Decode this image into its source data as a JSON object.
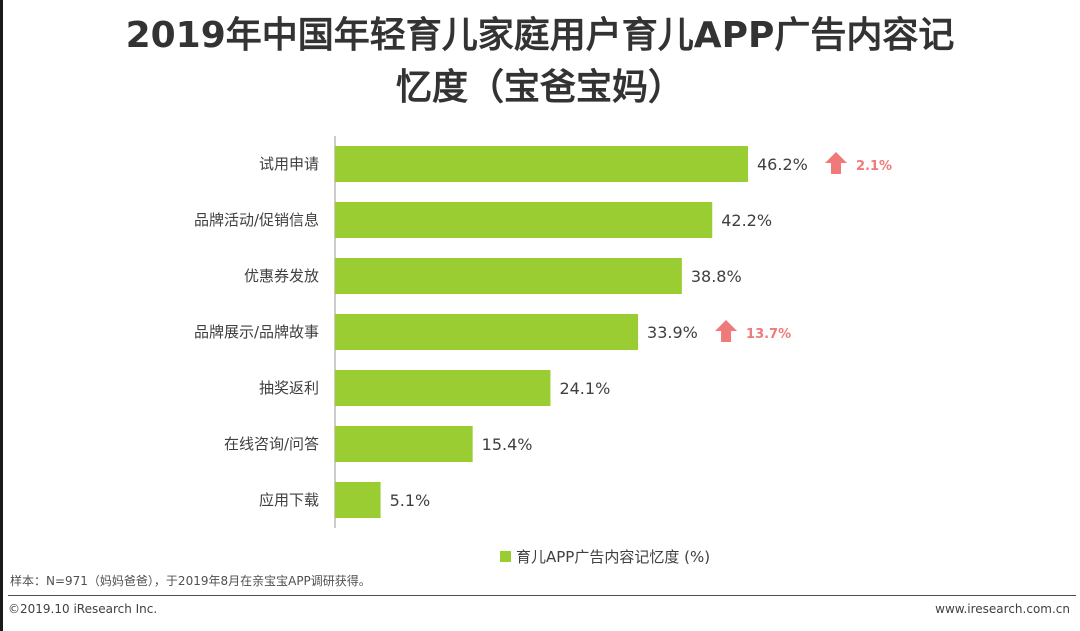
{
  "title_line1": "2019年中国年轻育儿家庭用户育儿APP广告内容记",
  "title_line2": "忆度（宝爸宝妈）",
  "chart_data": {
    "type": "bar",
    "orientation": "horizontal",
    "categories": [
      "试用申请",
      "品牌活动/促销信息",
      "优惠券发放",
      "品牌展示/品牌故事",
      "抽奖返利",
      "在线咨询/问答",
      "应用下载"
    ],
    "values": [
      46.2,
      42.2,
      38.8,
      33.9,
      24.1,
      15.4,
      5.1
    ],
    "value_labels": [
      "46.2%",
      "42.2%",
      "38.8%",
      "33.9%",
      "24.1%",
      "15.4%",
      "5.1%"
    ],
    "series_name": "育儿APP广告内容记忆度 (%)",
    "xlim": [
      0,
      50
    ],
    "bar_color": "#9acd32",
    "annotations": [
      {
        "category_index": 0,
        "text": "2.1%",
        "direction": "up",
        "color": "#f07a7a"
      },
      {
        "category_index": 3,
        "text": "13.7%",
        "direction": "up",
        "color": "#f07a7a"
      }
    ]
  },
  "legend": {
    "swatch_color": "#9acd32"
  },
  "note": "样本：N=971（妈妈爸爸），于2019年8月在亲宝宝APP调研获得。",
  "footer": {
    "left": "©2019.10 iResearch Inc.",
    "right": "www.iresearch.com.cn"
  }
}
